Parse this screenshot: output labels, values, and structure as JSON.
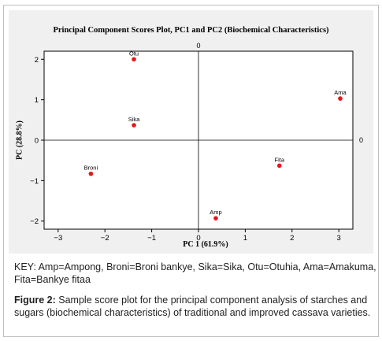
{
  "chart_data": {
    "type": "scatter",
    "title": "Principal Component Scores Plot, PC1 and PC2 (Biochemical Characteristics)",
    "xlabel": "PC 1 (61.9%)",
    "ylabel": "PC (28.8%)",
    "xlim": [
      -3.3,
      3.3
    ],
    "ylim": [
      -2.2,
      2.2
    ],
    "x_ticks": [
      -3,
      -2,
      -1,
      0,
      1,
      2,
      3
    ],
    "y_ticks": [
      -2,
      -1,
      0,
      1,
      2
    ],
    "reference_line_label_x": "0",
    "reference_line_label_y": "0",
    "grid": false,
    "point_color": "#e8141c",
    "points": [
      {
        "label": "Otu",
        "x": -1.38,
        "y": 2.0
      },
      {
        "label": "Ama",
        "x": 3.03,
        "y": 1.03
      },
      {
        "label": "Sika",
        "x": -1.38,
        "y": 0.37
      },
      {
        "label": "Broni",
        "x": -2.3,
        "y": -0.83
      },
      {
        "label": "Fita",
        "x": 1.73,
        "y": -0.63
      },
      {
        "label": "Amp",
        "x": 0.37,
        "y": -1.93
      }
    ]
  },
  "key": "KEY: Amp=Ampong, Broni=Broni bankye, Sika=Sika, Otu=Otuhia, Ama=Amakuma, Fita=Bankye fitaa",
  "caption": {
    "label": "Figure 2:",
    "text": " Sample score plot for the principal component analysis of starches and sugars (biochemical characteristics) of traditional and improved cassava varieties."
  }
}
